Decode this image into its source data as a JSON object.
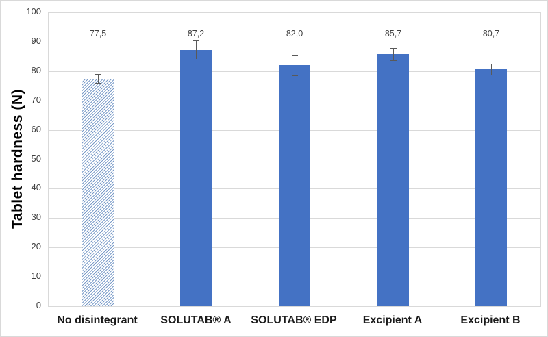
{
  "chart_data": {
    "type": "bar",
    "title": "",
    "ylabel": "Tablet hardness (N)",
    "xlabel": "",
    "categories": [
      "No disintegrant",
      "SOLUTAB® A",
      "SOLUTAB® EDP",
      "Excipient A",
      "Excipient B"
    ],
    "values": [
      77.5,
      87.2,
      82.0,
      85.7,
      80.7
    ],
    "value_labels": [
      "77,5",
      "87,2",
      "82,0",
      "85,7",
      "80,7"
    ],
    "error_bars_plus_minus": [
      1.6,
      3.2,
      3.4,
      2.1,
      1.9
    ],
    "ylim": [
      0,
      100
    ],
    "ytick_step": 10,
    "ytick_labels": [
      "0",
      "10",
      "20",
      "30",
      "40",
      "50",
      "60",
      "70",
      "80",
      "90",
      "100"
    ],
    "grid": true,
    "legend_position": "none",
    "bar_fill_styles": [
      "hatched",
      "solid",
      "solid",
      "solid",
      "solid"
    ],
    "colors": {
      "bar_solid": "#4472C4",
      "bar_hatch_line": "#7A9BC8",
      "bar_hatch_bg": "#FFFFFF",
      "gridline": "#D9D9D9",
      "plot_border": "#D9D9D9",
      "error_bar": "#595959",
      "data_label_text": "#404040",
      "tick_label_text": "#404040",
      "category_label_text": "#1A1A1A",
      "axis_title_text": "#000000",
      "chart_border": "#D9D9D9",
      "background": "#FFFFFF"
    }
  }
}
